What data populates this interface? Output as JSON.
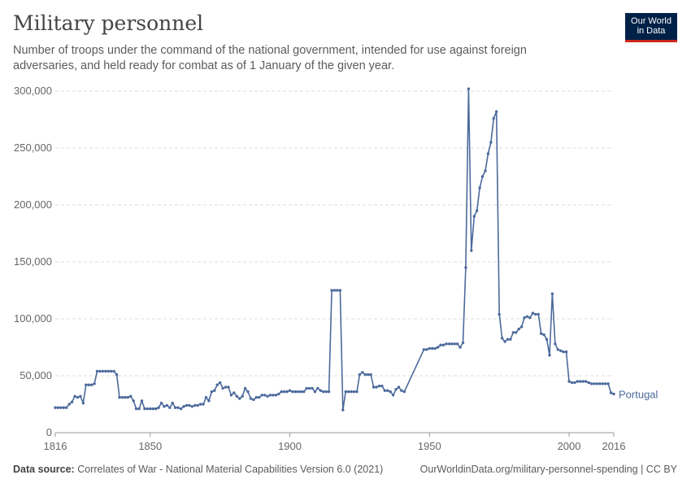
{
  "header": {
    "title": "Military personnel",
    "subtitle": "Number of troops under the command of the national government, intended for use against foreign adversaries, and held ready for combat as of 1 January of the given year.",
    "logo_line1": "Our World",
    "logo_line2": "in Data"
  },
  "footer": {
    "source_label": "Data source:",
    "source_text": "Correlates of War - National Material Capabilities Version 6.0 (2021)",
    "url_license": "OurWorldinData.org/military-personnel-spending | CC BY"
  },
  "colors": {
    "series": "#4c6a9c",
    "grid": "#dddddd",
    "accent": "#ce261e",
    "logo_bg": "#002147"
  },
  "chart_data": {
    "type": "line",
    "xlim": [
      1816,
      2016
    ],
    "ylim": [
      0,
      300000
    ],
    "x_ticks": [
      "1816",
      "1850",
      "1900",
      "1950",
      "2000",
      "2016"
    ],
    "y_ticks": [
      "0",
      "50,000",
      "100,000",
      "150,000",
      "200,000",
      "250,000",
      "300,000"
    ],
    "grid": "horizontal dashed",
    "series": [
      {
        "name": "Portugal",
        "points": [
          [
            1816,
            22000
          ],
          [
            1817,
            22000
          ],
          [
            1818,
            22000
          ],
          [
            1819,
            22000
          ],
          [
            1820,
            22000
          ],
          [
            1821,
            25000
          ],
          [
            1822,
            27000
          ],
          [
            1823,
            32000
          ],
          [
            1824,
            31000
          ],
          [
            1825,
            32000
          ],
          [
            1826,
            26000
          ],
          [
            1827,
            42000
          ],
          [
            1828,
            42000
          ],
          [
            1829,
            42000
          ],
          [
            1830,
            43000
          ],
          [
            1831,
            54000
          ],
          [
            1832,
            54000
          ],
          [
            1833,
            54000
          ],
          [
            1834,
            54000
          ],
          [
            1835,
            54000
          ],
          [
            1836,
            54000
          ],
          [
            1837,
            54000
          ],
          [
            1838,
            51000
          ],
          [
            1839,
            31000
          ],
          [
            1840,
            31000
          ],
          [
            1841,
            31000
          ],
          [
            1842,
            31000
          ],
          [
            1843,
            32000
          ],
          [
            1844,
            28000
          ],
          [
            1845,
            21000
          ],
          [
            1846,
            21000
          ],
          [
            1847,
            28000
          ],
          [
            1848,
            21000
          ],
          [
            1849,
            21000
          ],
          [
            1850,
            21000
          ],
          [
            1851,
            21000
          ],
          [
            1852,
            21000
          ],
          [
            1853,
            22000
          ],
          [
            1854,
            26000
          ],
          [
            1855,
            23000
          ],
          [
            1856,
            24000
          ],
          [
            1857,
            22000
          ],
          [
            1858,
            26000
          ],
          [
            1859,
            22000
          ],
          [
            1860,
            22000
          ],
          [
            1861,
            21000
          ],
          [
            1862,
            23000
          ],
          [
            1863,
            24000
          ],
          [
            1864,
            24000
          ],
          [
            1865,
            23000
          ],
          [
            1866,
            24000
          ],
          [
            1867,
            24000
          ],
          [
            1868,
            25000
          ],
          [
            1869,
            25000
          ],
          [
            1870,
            31000
          ],
          [
            1871,
            28000
          ],
          [
            1872,
            36000
          ],
          [
            1873,
            37000
          ],
          [
            1874,
            42000
          ],
          [
            1875,
            44000
          ],
          [
            1876,
            39000
          ],
          [
            1877,
            40000
          ],
          [
            1878,
            40000
          ],
          [
            1879,
            33000
          ],
          [
            1880,
            35000
          ],
          [
            1881,
            32000
          ],
          [
            1882,
            30000
          ],
          [
            1883,
            32000
          ],
          [
            1884,
            39000
          ],
          [
            1885,
            36000
          ],
          [
            1886,
            30000
          ],
          [
            1887,
            29000
          ],
          [
            1888,
            31000
          ],
          [
            1889,
            31000
          ],
          [
            1890,
            33000
          ],
          [
            1891,
            33000
          ],
          [
            1892,
            32000
          ],
          [
            1893,
            33000
          ],
          [
            1894,
            33000
          ],
          [
            1895,
            33000
          ],
          [
            1896,
            34000
          ],
          [
            1897,
            36000
          ],
          [
            1898,
            36000
          ],
          [
            1899,
            36000
          ],
          [
            1900,
            37000
          ],
          [
            1901,
            36000
          ],
          [
            1902,
            36000
          ],
          [
            1903,
            36000
          ],
          [
            1904,
            36000
          ],
          [
            1905,
            36000
          ],
          [
            1906,
            39000
          ],
          [
            1907,
            39000
          ],
          [
            1908,
            39000
          ],
          [
            1909,
            36000
          ],
          [
            1910,
            39000
          ],
          [
            1911,
            37000
          ],
          [
            1912,
            36000
          ],
          [
            1913,
            36000
          ],
          [
            1914,
            36000
          ],
          [
            1915,
            125000
          ],
          [
            1916,
            125000
          ],
          [
            1917,
            125000
          ],
          [
            1918,
            125000
          ],
          [
            1919,
            20000
          ],
          [
            1920,
            36000
          ],
          [
            1921,
            36000
          ],
          [
            1922,
            36000
          ],
          [
            1923,
            36000
          ],
          [
            1924,
            36000
          ],
          [
            1925,
            51000
          ],
          [
            1926,
            53000
          ],
          [
            1927,
            51000
          ],
          [
            1928,
            51000
          ],
          [
            1929,
            51000
          ],
          [
            1930,
            40000
          ],
          [
            1931,
            40000
          ],
          [
            1932,
            41000
          ],
          [
            1933,
            41000
          ],
          [
            1934,
            37000
          ],
          [
            1935,
            37000
          ],
          [
            1936,
            36000
          ],
          [
            1937,
            33000
          ],
          [
            1938,
            38000
          ],
          [
            1939,
            40000
          ],
          [
            1940,
            37000
          ],
          [
            1941,
            36000
          ],
          [
            1948,
            73000
          ],
          [
            1949,
            73000
          ],
          [
            1950,
            74000
          ],
          [
            1951,
            74000
          ],
          [
            1952,
            74000
          ],
          [
            1953,
            75000
          ],
          [
            1954,
            77000
          ],
          [
            1955,
            77000
          ],
          [
            1956,
            78000
          ],
          [
            1957,
            78000
          ],
          [
            1958,
            78000
          ],
          [
            1959,
            78000
          ],
          [
            1960,
            78000
          ],
          [
            1961,
            75000
          ],
          [
            1962,
            79000
          ],
          [
            1963,
            145000
          ],
          [
            1964,
            302000
          ],
          [
            1965,
            160000
          ],
          [
            1966,
            190000
          ],
          [
            1967,
            195000
          ],
          [
            1968,
            215000
          ],
          [
            1969,
            225000
          ],
          [
            1970,
            230000
          ],
          [
            1971,
            245000
          ],
          [
            1972,
            255000
          ],
          [
            1973,
            276000
          ],
          [
            1974,
            282000
          ],
          [
            1975,
            104000
          ],
          [
            1976,
            83000
          ],
          [
            1977,
            80000
          ],
          [
            1978,
            82000
          ],
          [
            1979,
            82000
          ],
          [
            1980,
            88000
          ],
          [
            1981,
            88000
          ],
          [
            1982,
            91000
          ],
          [
            1983,
            93000
          ],
          [
            1984,
            101000
          ],
          [
            1985,
            102000
          ],
          [
            1986,
            101000
          ],
          [
            1987,
            105000
          ],
          [
            1988,
            104000
          ],
          [
            1989,
            104000
          ],
          [
            1990,
            87000
          ],
          [
            1991,
            86000
          ],
          [
            1992,
            82000
          ],
          [
            1993,
            68000
          ],
          [
            1994,
            122000
          ],
          [
            1995,
            78000
          ],
          [
            1996,
            73000
          ],
          [
            1997,
            72000
          ],
          [
            1998,
            71000
          ],
          [
            1999,
            71000
          ],
          [
            2000,
            45000
          ],
          [
            2001,
            44000
          ],
          [
            2002,
            44000
          ],
          [
            2003,
            45000
          ],
          [
            2004,
            45000
          ],
          [
            2005,
            45000
          ],
          [
            2006,
            45000
          ],
          [
            2007,
            44000
          ],
          [
            2008,
            43000
          ],
          [
            2009,
            43000
          ],
          [
            2010,
            43000
          ],
          [
            2011,
            43000
          ],
          [
            2012,
            43000
          ],
          [
            2013,
            43000
          ],
          [
            2014,
            43000
          ],
          [
            2015,
            35000
          ],
          [
            2016,
            34000
          ]
        ]
      }
    ]
  }
}
